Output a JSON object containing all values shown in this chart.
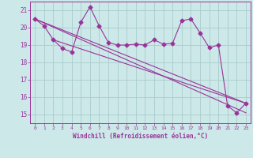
{
  "xlabel": "Windchill (Refroidissement éolien,°C)",
  "bg_color": "#cce8e8",
  "grid_color": "#aacccc",
  "line_color": "#993399",
  "xlim": [
    -0.5,
    23.5
  ],
  "ylim": [
    14.5,
    21.5
  ],
  "xticks": [
    0,
    1,
    2,
    3,
    4,
    5,
    6,
    7,
    8,
    9,
    10,
    11,
    12,
    13,
    14,
    15,
    16,
    17,
    18,
    19,
    20,
    21,
    22,
    23
  ],
  "yticks": [
    15,
    16,
    17,
    18,
    19,
    20,
    21
  ],
  "series1_x": [
    0,
    1,
    2,
    3,
    4,
    5,
    6,
    7,
    8,
    9,
    10,
    11,
    12,
    13,
    14,
    15,
    16,
    17,
    18,
    19,
    20,
    21,
    22,
    23
  ],
  "series1_y": [
    20.5,
    20.1,
    19.3,
    18.8,
    18.6,
    20.3,
    21.2,
    20.1,
    19.15,
    19.0,
    19.0,
    19.05,
    19.0,
    19.3,
    19.05,
    19.1,
    20.4,
    20.5,
    19.7,
    18.85,
    19.0,
    15.5,
    15.1,
    15.65
  ],
  "line1_x": [
    0,
    23
  ],
  "line1_y": [
    20.5,
    15.1
  ],
  "line2_x": [
    0,
    23
  ],
  "line2_y": [
    20.5,
    15.65
  ],
  "line3_x": [
    2,
    23
  ],
  "line3_y": [
    19.3,
    15.65
  ]
}
